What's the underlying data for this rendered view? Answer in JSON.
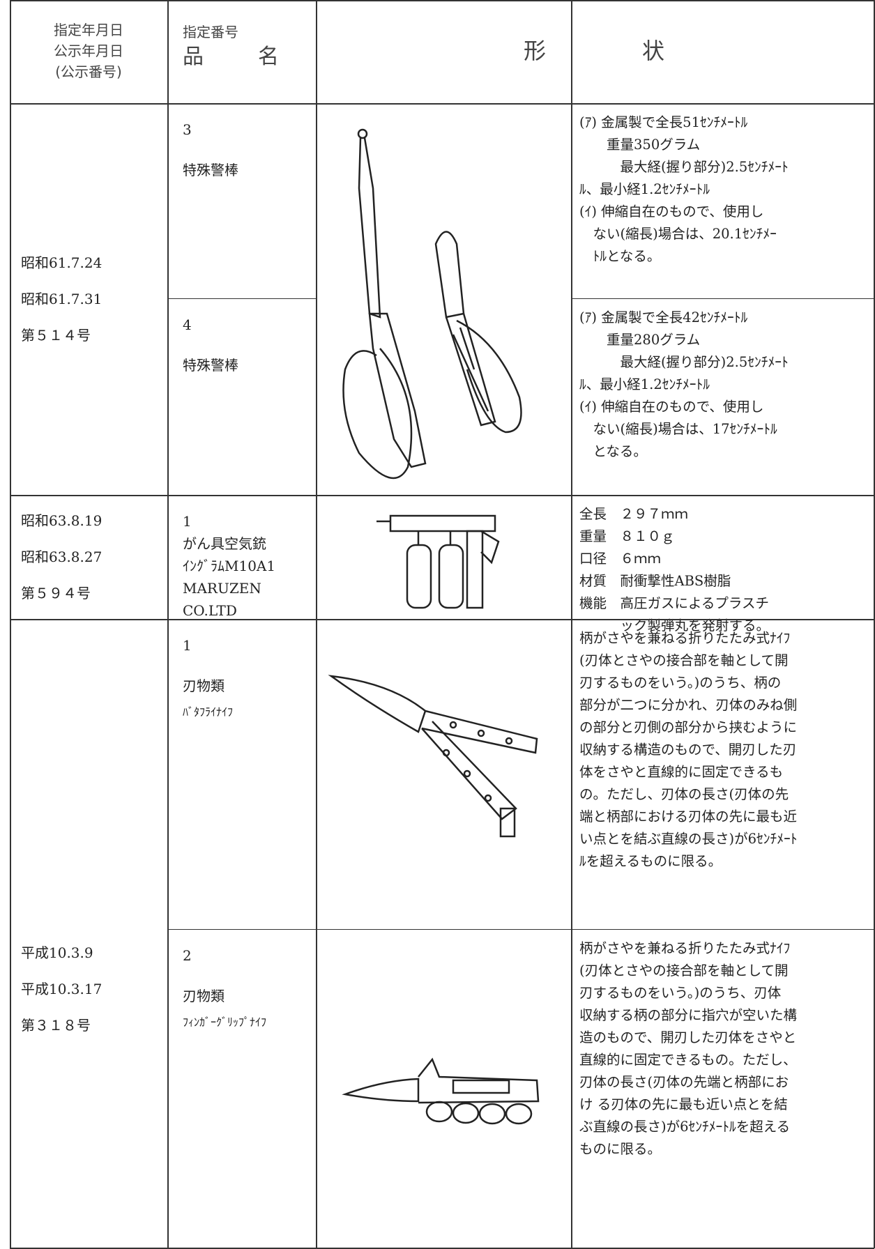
{
  "header": {
    "dates": [
      "指定年月日",
      "公示年月日",
      "(公示番号)"
    ],
    "number": "指定番号",
    "name": "品　　名",
    "shape": "形　　　　状"
  },
  "groups": [
    {
      "dates": [
        "昭和61.7.24",
        "昭和61.7.31",
        "第５１４号"
      ],
      "items": [
        {
          "number": "3",
          "name": [
            "特殊警棒"
          ],
          "description": [
            "(ｱ) 金属製で全長51ｾﾝﾁﾒｰﾄﾙ",
            "　　重量350グラム",
            "　　　最大経(握り部分)2.5ｾﾝﾁﾒｰﾄ",
            "ﾙ、最小経1.2ｾﾝﾁﾒｰﾄﾙ",
            "(ｲ) 伸縮自在のもので、使用し",
            "　ない(縮長)場合は、20.1ｾﾝﾁﾒｰ",
            "　ﾄﾙとなる。"
          ]
        },
        {
          "number": "4",
          "name": [
            "特殊警棒"
          ],
          "description": [
            "(ｱ) 金属製で全長42ｾﾝﾁﾒｰﾄﾙ",
            "　　重量280グラム",
            "　　　最大経(握り部分)2.5ｾﾝﾁﾒｰﾄ",
            "ﾙ、最小経1.2ｾﾝﾁﾒｰﾄﾙ",
            "(ｲ) 伸縮自在のもので、使用し",
            "　ない(縮長)場合は、17ｾﾝﾁﾒｰﾄﾙ",
            "　となる。"
          ]
        }
      ]
    },
    {
      "dates": [
        "昭和63.8.19",
        "昭和63.8.27",
        "第５９４号"
      ],
      "items": [
        {
          "number": "1",
          "name": [
            "がん具空気銃",
            "ｲﾝｸﾞﾗﾑM10A1",
            "MARUZEN",
            "CO.LTD"
          ],
          "description": [
            "全長　２９７ｍｍ",
            "重量　８１０ｇ",
            "口径　６ｍｍ",
            "材質　耐衝撃性ABS樹脂",
            "機能　高圧ガスによるプラスチ",
            "　　　ック製弾丸を発射する。"
          ]
        }
      ]
    },
    {
      "dates": [
        "平成10.3.9",
        "平成10.3.17",
        "第３１８号"
      ],
      "items": [
        {
          "number": "1",
          "name": [
            "刃物類",
            "ﾊﾞﾀﾌﾗｲﾅｲﾌ"
          ],
          "description": [
            "柄がさやを兼ねる折りたたみ式ﾅｲﾌ",
            "(刃体とさやの接合部を軸として開",
            "刃するものをいう。)のうち、柄の",
            "部分が二つに分かれ、刃体のみね側",
            "の部分と刃側の部分から挟むように",
            "収納する構造のもので、開刃した刃",
            "体をさやと直線的に固定できるも",
            "の。ただし、刃体の長さ(刃体の先",
            "端と柄部における刃体の先に最も近",
            "い点とを結ぶ直線の長さ)が6ｾﾝﾁﾒｰﾄ",
            "ﾙを超えるものに限る。"
          ]
        },
        {
          "number": "2",
          "name": [
            "刃物類",
            "ﾌｨﾝｶﾞｰｸﾞﾘｯﾌﾟﾅｲﾌ"
          ],
          "description": [
            "柄がさやを兼ねる折りたたみ式ﾅｲﾌ",
            "(刃体とさやの接合部を軸として開",
            "刃するものをいう。)のうち、刃体",
            "収納する柄の部分に指穴が空いた構",
            "造のもので、開刃した刃体をさやと",
            "直線的に固定できるもの。ただし、",
            "刃体の長さ(刃体の先端と柄部にお",
            "け る刃体の先に最も近い点とを結",
            "ぶ直線の長さ)が6ｾﾝﾁﾒｰﾄﾙを超える",
            "ものに限る。"
          ]
        }
      ]
    }
  ]
}
